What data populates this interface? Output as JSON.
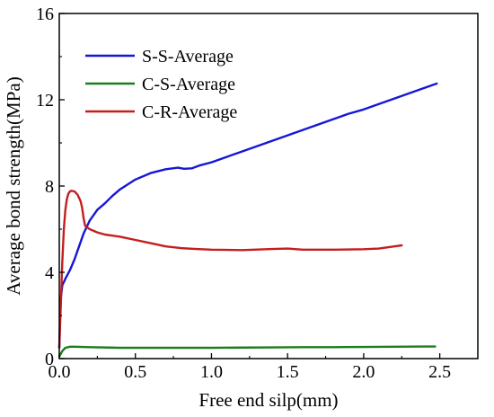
{
  "chart_data": {
    "type": "line",
    "xlabel": "Free end silp(mm)",
    "ylabel": "Average bond strength(MPa)",
    "xlim": [
      0,
      2.75
    ],
    "ylim": [
      0,
      16
    ],
    "xticks": [
      0.0,
      0.5,
      1.0,
      1.5,
      2.0,
      2.5
    ],
    "xtick_labels": [
      "0.0",
      "0.5",
      "1.0",
      "1.5",
      "2.0",
      "2.5"
    ],
    "yticks": [
      0,
      4,
      8,
      12,
      16
    ],
    "ytick_labels": [
      "0",
      "4",
      "8",
      "12",
      "16"
    ],
    "grid": false,
    "legend_position": "top-left",
    "series": [
      {
        "name": "S-S-Average",
        "color": "#1616d6",
        "x": [
          0.0,
          0.005,
          0.01,
          0.02,
          0.04,
          0.07,
          0.1,
          0.13,
          0.16,
          0.2,
          0.25,
          0.3,
          0.35,
          0.4,
          0.5,
          0.6,
          0.7,
          0.78,
          0.82,
          0.87,
          0.92,
          1.0,
          1.1,
          1.2,
          1.3,
          1.4,
          1.5,
          1.6,
          1.7,
          1.8,
          1.9,
          2.0,
          2.1,
          2.2,
          2.3,
          2.4,
          2.48
        ],
        "y": [
          0.5,
          1.8,
          2.8,
          3.4,
          3.7,
          4.1,
          4.6,
          5.2,
          5.8,
          6.4,
          6.9,
          7.2,
          7.55,
          7.85,
          8.3,
          8.6,
          8.78,
          8.85,
          8.8,
          8.82,
          8.95,
          9.1,
          9.35,
          9.6,
          9.85,
          10.1,
          10.35,
          10.6,
          10.85,
          11.1,
          11.35,
          11.55,
          11.8,
          12.05,
          12.3,
          12.55,
          12.75
        ]
      },
      {
        "name": "C-S-Average",
        "color": "#1e7d1e",
        "x": [
          0.0,
          0.02,
          0.04,
          0.07,
          0.1,
          0.2,
          0.4,
          0.6,
          0.8,
          1.0,
          1.2,
          1.4,
          1.6,
          1.8,
          2.0,
          2.2,
          2.4,
          2.47
        ],
        "y": [
          0.1,
          0.35,
          0.5,
          0.55,
          0.55,
          0.53,
          0.5,
          0.5,
          0.5,
          0.5,
          0.51,
          0.52,
          0.53,
          0.53,
          0.54,
          0.55,
          0.56,
          0.56
        ]
      },
      {
        "name": "C-R-Average",
        "color": "#c41e1e",
        "x": [
          0.0,
          0.01,
          0.02,
          0.03,
          0.04,
          0.05,
          0.06,
          0.07,
          0.08,
          0.1,
          0.12,
          0.14,
          0.15,
          0.16,
          0.17,
          0.2,
          0.25,
          0.3,
          0.4,
          0.5,
          0.6,
          0.7,
          0.8,
          0.9,
          1.0,
          1.2,
          1.4,
          1.5,
          1.6,
          1.8,
          2.0,
          2.1,
          2.2,
          2.25
        ],
        "y": [
          0.5,
          2.5,
          4.5,
          6.0,
          6.9,
          7.4,
          7.65,
          7.75,
          7.78,
          7.75,
          7.6,
          7.3,
          7.0,
          6.5,
          6.15,
          6.0,
          5.85,
          5.75,
          5.65,
          5.5,
          5.35,
          5.2,
          5.12,
          5.08,
          5.05,
          5.03,
          5.08,
          5.1,
          5.05,
          5.05,
          5.07,
          5.1,
          5.2,
          5.25
        ]
      }
    ]
  }
}
